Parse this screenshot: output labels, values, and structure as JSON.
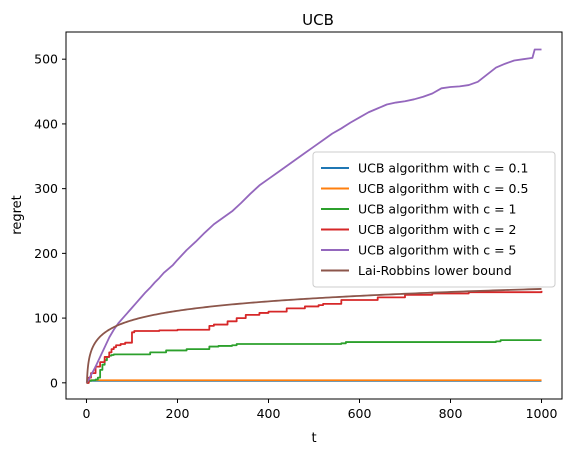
{
  "chart_data": {
    "type": "line",
    "title": "UCB",
    "xlabel": "t",
    "ylabel": "regret",
    "xlim": [
      -45,
      1045
    ],
    "ylim": [
      -25,
      542
    ],
    "xticks": [
      0,
      200,
      400,
      600,
      800,
      1000
    ],
    "yticks": [
      0,
      100,
      200,
      300,
      400,
      500
    ],
    "grid": false,
    "legend_position": "center-right",
    "series": [
      {
        "name": "UCB algorithm with c = 0.1",
        "color": "#1f77b4",
        "style": "step",
        "x": [
          0,
          3,
          1000
        ],
        "y": [
          0,
          3,
          3
        ]
      },
      {
        "name": "UCB algorithm with c = 0.5",
        "color": "#ff7f0e",
        "style": "step",
        "x": [
          0,
          3,
          1000
        ],
        "y": [
          0,
          4,
          4
        ]
      },
      {
        "name": "UCB algorithm with c = 1",
        "color": "#2ca02c",
        "style": "step",
        "x": [
          0,
          5,
          10,
          20,
          25,
          30,
          35,
          40,
          45,
          50,
          55,
          60,
          140,
          175,
          220,
          270,
          290,
          320,
          330,
          560,
          570,
          900,
          910,
          1000
        ],
        "y": [
          0,
          3,
          4,
          5,
          8,
          20,
          28,
          35,
          40,
          42,
          43,
          44,
          47,
          50,
          52,
          56,
          57,
          58,
          60,
          61,
          63,
          64,
          66,
          66
        ]
      },
      {
        "name": "UCB algorithm with c = 2",
        "color": "#d62728",
        "style": "step",
        "x": [
          0,
          5,
          10,
          20,
          30,
          40,
          50,
          55,
          60,
          65,
          75,
          85,
          100,
          105,
          160,
          200,
          270,
          280,
          310,
          330,
          350,
          380,
          400,
          440,
          480,
          510,
          520,
          560,
          640,
          700,
          760,
          840,
          1000
        ],
        "y": [
          0,
          8,
          15,
          25,
          32,
          40,
          47,
          52,
          55,
          58,
          60,
          62,
          78,
          80,
          81,
          82,
          88,
          90,
          95,
          100,
          105,
          108,
          110,
          115,
          118,
          120,
          122,
          128,
          132,
          136,
          138,
          140,
          142
        ]
      },
      {
        "name": "UCB algorithm with c = 5",
        "color": "#9467bd",
        "style": "line",
        "x": [
          0,
          5,
          10,
          20,
          30,
          40,
          50,
          60,
          70,
          80,
          90,
          100,
          110,
          120,
          130,
          140,
          150,
          160,
          170,
          180,
          190,
          200,
          220,
          240,
          260,
          280,
          300,
          320,
          340,
          360,
          380,
          400,
          420,
          440,
          460,
          480,
          500,
          520,
          540,
          560,
          580,
          600,
          620,
          640,
          660,
          680,
          700,
          720,
          740,
          760,
          780,
          800,
          820,
          840,
          860,
          880,
          900,
          920,
          940,
          960,
          980,
          985,
          1000
        ],
        "y": [
          0,
          5,
          12,
          25,
          40,
          55,
          70,
          82,
          92,
          100,
          108,
          116,
          124,
          132,
          140,
          147,
          155,
          162,
          170,
          176,
          182,
          190,
          205,
          218,
          232,
          245,
          255,
          265,
          278,
          292,
          305,
          315,
          325,
          335,
          345,
          355,
          365,
          375,
          385,
          393,
          402,
          410,
          418,
          424,
          430,
          433,
          435,
          438,
          442,
          447,
          455,
          457,
          458,
          460,
          465,
          476,
          487,
          493,
          498,
          500,
          502,
          515,
          515
        ]
      },
      {
        "name": "Lai-Robbins lower bound",
        "color": "#8c564b",
        "style": "log",
        "coef": 21.0,
        "x": [
          0,
          1000
        ],
        "y": [
          0,
          145
        ]
      }
    ]
  }
}
